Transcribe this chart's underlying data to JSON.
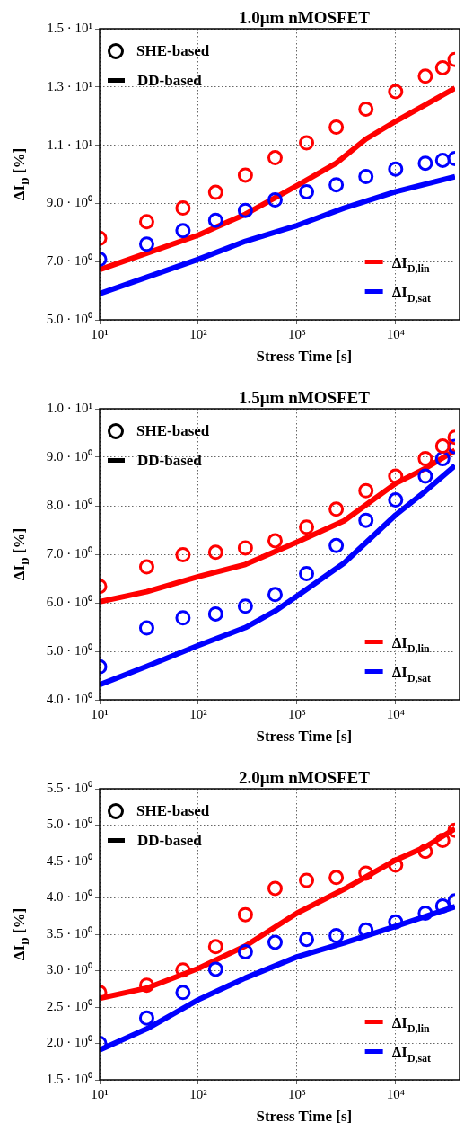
{
  "chart_data": [
    {
      "type": "line",
      "title": "1.0μm nMOSFET",
      "xlabel": "Stress Time [s]",
      "ylabel": "ΔI$_{D}$ [%]",
      "log": "x",
      "grid": true,
      "legend": "bottom right",
      "annotations": [
        "SHE-based",
        "DD-based"
      ],
      "xlim": [
        10,
        40000
      ],
      "xticks": [
        {
          "value": 10,
          "label": "10¹"
        },
        {
          "value": 100,
          "label": "10²"
        },
        {
          "value": 1000,
          "label": "10³"
        },
        {
          "value": 10000,
          "label": "10⁴"
        }
      ],
      "ylim": [
        5,
        15
      ],
      "yticks": [
        {
          "value": 5,
          "label": "5.0 · 10⁰"
        },
        {
          "value": 7,
          "label": "7.0 · 10⁰"
        },
        {
          "value": 9,
          "label": "9.0 · 10⁰"
        },
        {
          "value": 11,
          "label": "1.1 · 10¹"
        },
        {
          "value": 13,
          "label": "1.3 · 10¹"
        },
        {
          "value": 15,
          "label": "1.5 · 10¹"
        }
      ],
      "x": [
        10,
        30,
        70,
        150,
        300,
        600,
        1250,
        2500,
        5000,
        10000,
        20000,
        30000,
        40000
      ],
      "series": [
        {
          "type": "scatter",
          "marker": "circle",
          "color": "#ff0000",
          "values": [
            7.8,
            8.37,
            8.84,
            9.38,
            9.97,
            10.57,
            11.08,
            11.62,
            12.24,
            12.84,
            13.37,
            13.66,
            13.94
          ]
        },
        {
          "type": "scatter",
          "marker": "circle",
          "color": "#0000ff",
          "values": [
            7.08,
            7.6,
            8.06,
            8.42,
            8.76,
            9.12,
            9.4,
            9.64,
            9.92,
            10.18,
            10.38,
            10.48,
            10.54
          ]
        },
        {
          "name": "ΔI$_{D,lin}$",
          "line_style": "solid",
          "color": "#ff0000",
          "x": [
            10,
            30,
            100,
            300,
            1000,
            2500,
            5000,
            10000,
            20000,
            40000
          ],
          "values": [
            6.72,
            7.29,
            7.91,
            8.63,
            9.61,
            10.38,
            11.21,
            11.82,
            12.39,
            12.96
          ]
        },
        {
          "name": "ΔI$_{D,sat}$",
          "line_style": "solid",
          "color": "#0000ff",
          "x": [
            10,
            30,
            100,
            300,
            1000,
            3000,
            10000,
            40000
          ],
          "values": [
            5.9,
            6.46,
            7.08,
            7.7,
            8.24,
            8.84,
            9.4,
            9.92
          ]
        }
      ]
    },
    {
      "type": "line",
      "title": "1.5μm nMOSFET",
      "xlabel": "Stress Time [s]",
      "ylabel": "ΔI$_{D}$ [%]",
      "log": "x",
      "grid": true,
      "legend": "bottom right",
      "annotations": [
        "SHE-based",
        "DD-based"
      ],
      "xlim": [
        10,
        40000
      ],
      "xticks": [
        {
          "value": 10,
          "label": "10¹"
        },
        {
          "value": 100,
          "label": "10²"
        },
        {
          "value": 1000,
          "label": "10³"
        },
        {
          "value": 10000,
          "label": "10⁴"
        }
      ],
      "ylim": [
        4,
        10
      ],
      "yticks": [
        {
          "value": 4,
          "label": "4.0 · 10⁰"
        },
        {
          "value": 5,
          "label": "5.0 · 10⁰"
        },
        {
          "value": 6,
          "label": "6.0 · 10⁰"
        },
        {
          "value": 7,
          "label": "7.0 · 10⁰"
        },
        {
          "value": 8,
          "label": "8.0 · 10⁰"
        },
        {
          "value": 9,
          "label": "9.0 · 10⁰"
        },
        {
          "value": 10,
          "label": "1.0 · 10¹"
        }
      ],
      "x": [
        10,
        30,
        70,
        150,
        300,
        600,
        1250,
        2500,
        5000,
        10000,
        20000,
        30000,
        40000
      ],
      "series": [
        {
          "type": "scatter",
          "marker": "circle",
          "color": "#ff0000",
          "values": [
            6.34,
            6.74,
            6.99,
            7.04,
            7.13,
            7.28,
            7.56,
            7.93,
            8.31,
            8.61,
            8.97,
            9.23,
            9.41
          ]
        },
        {
          "type": "scatter",
          "marker": "circle",
          "color": "#0000ff",
          "values": [
            4.68,
            5.48,
            5.69,
            5.77,
            5.93,
            6.17,
            6.6,
            7.18,
            7.7,
            8.12,
            8.61,
            8.97,
            9.22
          ]
        },
        {
          "name": "ΔI$_{D,lin}$",
          "line_style": "solid",
          "color": "#ff0000",
          "x": [
            10,
            30,
            100,
            300,
            1000,
            3000,
            10000,
            20000,
            40000
          ],
          "values": [
            6.02,
            6.23,
            6.54,
            6.79,
            7.25,
            7.69,
            8.46,
            8.77,
            9.14
          ]
        },
        {
          "name": "ΔI$_{D,sat}$",
          "line_style": "solid",
          "color": "#0000ff",
          "x": [
            10,
            30,
            100,
            300,
            600,
            1000,
            3000,
            10000,
            20000,
            40000
          ],
          "values": [
            4.31,
            4.69,
            5.12,
            5.49,
            5.83,
            6.14,
            6.82,
            7.81,
            8.3,
            8.83
          ]
        }
      ]
    },
    {
      "type": "line",
      "title": "2.0μm nMOSFET",
      "xlabel": "Stress Time [s]",
      "ylabel": "ΔI$_{D}$ [%]",
      "log": "x",
      "grid": true,
      "legend": "bottom right",
      "annotations": [
        "SHE-based",
        "DD-based"
      ],
      "xlim": [
        10,
        40000
      ],
      "xticks": [
        {
          "value": 10,
          "label": "10¹"
        },
        {
          "value": 100,
          "label": "10²"
        },
        {
          "value": 1000,
          "label": "10³"
        },
        {
          "value": 10000,
          "label": "10⁴"
        }
      ],
      "ylim": [
        1.5,
        5.5
      ],
      "yticks": [
        {
          "value": 1.5,
          "label": "1.5 · 10⁰"
        },
        {
          "value": 2,
          "label": "2.0 · 10⁰"
        },
        {
          "value": 2.5,
          "label": "2.5 · 10⁰"
        },
        {
          "value": 3,
          "label": "3.0 · 10⁰"
        },
        {
          "value": 3.5,
          "label": "3.5 · 10⁰"
        },
        {
          "value": 4,
          "label": "4.0 · 10⁰"
        },
        {
          "value": 4.5,
          "label": "4.5 · 10⁰"
        },
        {
          "value": 5,
          "label": "5.0 · 10⁰"
        },
        {
          "value": 5.5,
          "label": "5.5 · 10⁰"
        }
      ],
      "x": [
        10,
        30,
        70,
        150,
        300,
        600,
        1250,
        2500,
        5000,
        10000,
        20000,
        30000,
        40000
      ],
      "series": [
        {
          "type": "scatter",
          "marker": "circle",
          "color": "#ff0000",
          "values": [
            2.7,
            2.8,
            3.01,
            3.33,
            3.77,
            4.13,
            4.24,
            4.28,
            4.34,
            4.45,
            4.64,
            4.79,
            4.93
          ]
        },
        {
          "type": "scatter",
          "marker": "circle",
          "color": "#0000ff",
          "values": [
            2.0,
            2.35,
            2.7,
            3.02,
            3.26,
            3.39,
            3.43,
            3.48,
            3.56,
            3.67,
            3.79,
            3.89,
            3.96
          ]
        },
        {
          "name": "ΔI$_{D,lin}$",
          "line_style": "solid",
          "color": "#ff0000",
          "x": [
            10,
            30,
            100,
            300,
            1000,
            3000,
            10000,
            20000,
            40000
          ],
          "values": [
            2.62,
            2.76,
            3.03,
            3.34,
            3.79,
            4.12,
            4.52,
            4.7,
            4.95
          ]
        },
        {
          "name": "ΔI$_{D,sat}$",
          "line_style": "solid",
          "color": "#0000ff",
          "x": [
            10,
            30,
            100,
            300,
            1000,
            3000,
            10000,
            40000
          ],
          "values": [
            1.91,
            2.2,
            2.6,
            2.9,
            3.19,
            3.38,
            3.61,
            3.88
          ]
        }
      ]
    }
  ]
}
